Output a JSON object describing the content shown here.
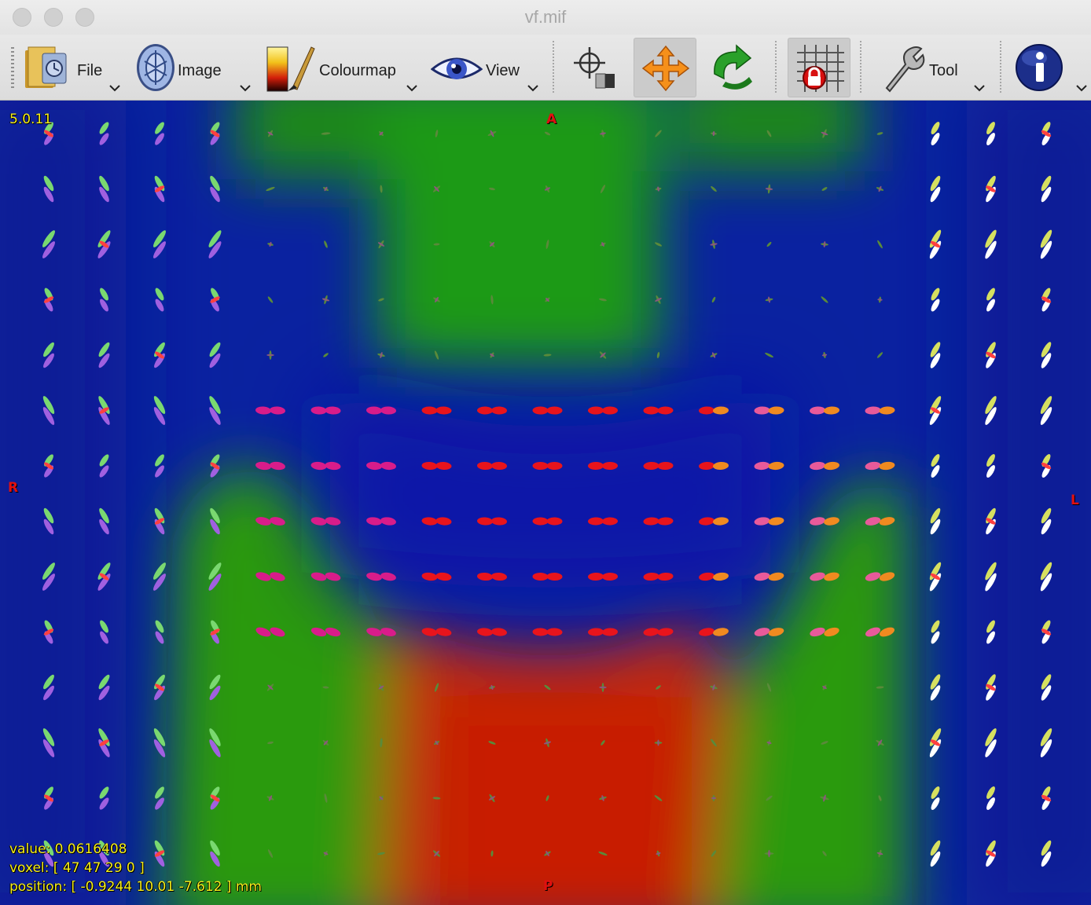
{
  "window": {
    "title": "vf.mif"
  },
  "toolbar": {
    "file_label": "File",
    "image_label": "Image",
    "colourmap_label": "Colourmap",
    "view_label": "View",
    "tool_label": "Tool"
  },
  "overlay": {
    "version": "5.0.11",
    "value_text": "value: 0.0616408",
    "voxel_text": "voxel: [ 47 47 29 0 ]",
    "position_text": "position: [ -0.9244 10.01 -7.612 ] mm"
  },
  "orientation": {
    "top": "A",
    "bottom": "P",
    "left": "R",
    "right": "L"
  },
  "colors": {
    "background_blue": "#0a24a8",
    "green_region": "#22a012",
    "red_region": "#cc2a08",
    "overlay_text": "#f5ee1a",
    "orientation_label": "#e01010"
  }
}
